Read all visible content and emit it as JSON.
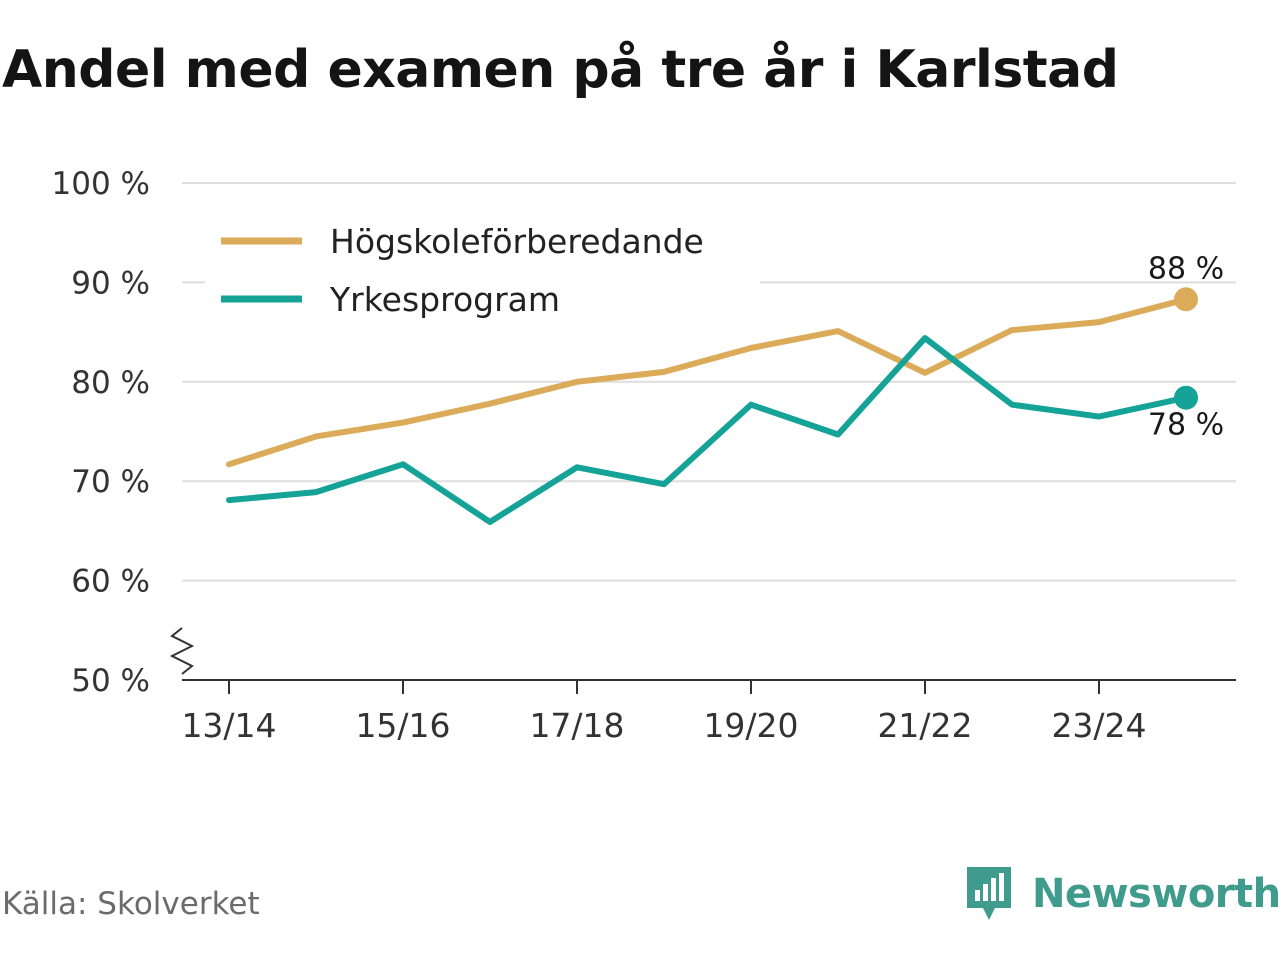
{
  "chart_data": {
    "type": "line",
    "title": "Andel med examen på tre år i Karlstad",
    "categories": [
      "13/14",
      "14/15",
      "15/16",
      "16/17",
      "17/18",
      "18/19",
      "19/20",
      "20/21",
      "21/22",
      "22/23",
      "23/24",
      "24/25"
    ],
    "x_tick_labels": [
      "13/14",
      "15/16",
      "17/18",
      "19/20",
      "21/22",
      "23/24"
    ],
    "y_tick_labels": [
      "100 %",
      "90 %",
      "80 %",
      "70 %",
      "60 %",
      "50 %"
    ],
    "ylim": [
      50,
      100
    ],
    "xlabel": "",
    "ylabel": "",
    "grid": true,
    "legend_position": "top-left",
    "series": [
      {
        "name": "Högskoleförberedande",
        "color": "#dbab5a",
        "values": [
          71.7,
          74.5,
          75.9,
          77.8,
          80.0,
          81.0,
          83.4,
          85.1,
          80.9,
          85.2,
          86.0,
          88.3
        ],
        "end_label": "88 %"
      },
      {
        "name": "Yrkesprogram",
        "color": "#16a397",
        "values": [
          68.1,
          68.9,
          71.7,
          65.9,
          71.4,
          69.7,
          77.7,
          74.7,
          84.4,
          77.7,
          76.5,
          78.4
        ],
        "end_label": "78 %"
      }
    ]
  },
  "footer": {
    "source": "Källa: Skolverket",
    "brand": "Newsworthy",
    "brand_icon": "bar-chart-icon",
    "brand_color": "#3f9b8b"
  }
}
